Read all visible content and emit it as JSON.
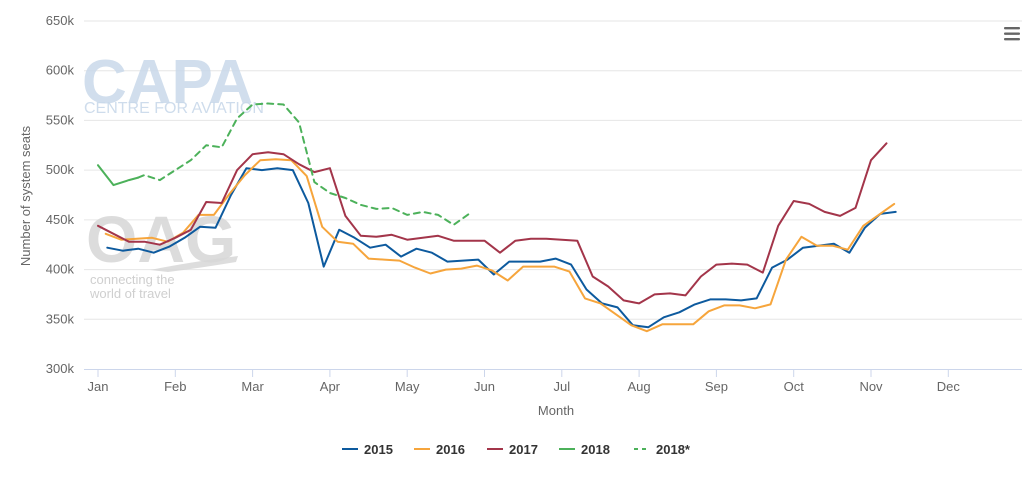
{
  "watermarks": {
    "capa_logo": "CAPA",
    "capa_sub": "CENTRE FOR AVIATION",
    "oag_logo": "OAG",
    "oag_tag_line1": "connecting the",
    "oag_tag_line2": "world of travel"
  },
  "menu_icon": "hamburger-icon",
  "chart_data": {
    "type": "line",
    "title": "",
    "xlabel": "Month",
    "ylabel": "Number of system seats",
    "ylim": [
      300000,
      650000
    ],
    "yticks": [
      {
        "value": 300000,
        "label": "300k"
      },
      {
        "value": 350000,
        "label": "350k"
      },
      {
        "value": 400000,
        "label": "400k"
      },
      {
        "value": 450000,
        "label": "450k"
      },
      {
        "value": 500000,
        "label": "500k"
      },
      {
        "value": 550000,
        "label": "550k"
      },
      {
        "value": 600000,
        "label": "600k"
      },
      {
        "value": 650000,
        "label": "650k"
      }
    ],
    "xlim": [
      0,
      12
    ],
    "xticks": [
      {
        "value": 0,
        "label": "Jan"
      },
      {
        "value": 1,
        "label": "Feb"
      },
      {
        "value": 2,
        "label": "Mar"
      },
      {
        "value": 3,
        "label": "Apr"
      },
      {
        "value": 4,
        "label": "May"
      },
      {
        "value": 5,
        "label": "Jun"
      },
      {
        "value": 6,
        "label": "Jul"
      },
      {
        "value": 7,
        "label": "Aug"
      },
      {
        "value": 8,
        "label": "Sep"
      },
      {
        "value": 9,
        "label": "Oct"
      },
      {
        "value": 10,
        "label": "Nov"
      },
      {
        "value": 11,
        "label": "Dec"
      }
    ],
    "grid": true,
    "legend_position": "bottom-center",
    "series": [
      {
        "name": "2015",
        "color": "#0d5a9e",
        "dashed": false,
        "points": [
          [
            0.12,
            422000
          ],
          [
            0.32,
            419000
          ],
          [
            0.52,
            421000
          ],
          [
            0.72,
            417000
          ],
          [
            0.92,
            423000
          ],
          [
            1.12,
            432000
          ],
          [
            1.32,
            443000
          ],
          [
            1.52,
            442000
          ],
          [
            1.72,
            475000
          ],
          [
            1.92,
            502000
          ],
          [
            2.12,
            500000
          ],
          [
            2.32,
            502000
          ],
          [
            2.52,
            500000
          ],
          [
            2.72,
            467000
          ],
          [
            2.92,
            403000
          ],
          [
            3.12,
            440000
          ],
          [
            3.32,
            432000
          ],
          [
            3.52,
            422000
          ],
          [
            3.72,
            425000
          ],
          [
            3.92,
            413000
          ],
          [
            4.12,
            421000
          ],
          [
            4.32,
            417000
          ],
          [
            4.52,
            408000
          ],
          [
            4.72,
            409000
          ],
          [
            4.92,
            410000
          ],
          [
            5.12,
            395000
          ],
          [
            5.32,
            408000
          ],
          [
            5.52,
            408000
          ],
          [
            5.72,
            408000
          ],
          [
            5.92,
            411000
          ],
          [
            6.12,
            405000
          ],
          [
            6.32,
            380000
          ],
          [
            6.52,
            366000
          ],
          [
            6.72,
            362000
          ],
          [
            6.92,
            344000
          ],
          [
            7.12,
            342000
          ],
          [
            7.32,
            352000
          ],
          [
            7.52,
            357000
          ],
          [
            7.72,
            365000
          ],
          [
            7.92,
            370000
          ],
          [
            8.12,
            370000
          ],
          [
            8.32,
            369000
          ],
          [
            8.52,
            371000
          ],
          [
            8.72,
            402000
          ],
          [
            8.92,
            410000
          ],
          [
            9.12,
            422000
          ],
          [
            9.32,
            424000
          ],
          [
            9.52,
            426000
          ],
          [
            9.72,
            417000
          ],
          [
            9.92,
            442000
          ],
          [
            10.12,
            456000
          ],
          [
            10.32,
            458000
          ]
        ]
      },
      {
        "name": "2016",
        "color": "#f6a53c",
        "dashed": false,
        "points": [
          [
            0.1,
            436000
          ],
          [
            0.3,
            430000
          ],
          [
            0.5,
            431000
          ],
          [
            0.7,
            432000
          ],
          [
            0.9,
            428000
          ],
          [
            1.1,
            437000
          ],
          [
            1.3,
            455000
          ],
          [
            1.5,
            455000
          ],
          [
            1.7,
            476000
          ],
          [
            1.9,
            495000
          ],
          [
            2.1,
            510000
          ],
          [
            2.3,
            511000
          ],
          [
            2.5,
            510000
          ],
          [
            2.7,
            494000
          ],
          [
            2.9,
            443000
          ],
          [
            3.1,
            428000
          ],
          [
            3.3,
            426000
          ],
          [
            3.5,
            411000
          ],
          [
            3.7,
            410000
          ],
          [
            3.9,
            409000
          ],
          [
            4.1,
            402000
          ],
          [
            4.3,
            396000
          ],
          [
            4.5,
            400000
          ],
          [
            4.7,
            401000
          ],
          [
            4.9,
            404000
          ],
          [
            5.1,
            399000
          ],
          [
            5.3,
            389000
          ],
          [
            5.5,
            403000
          ],
          [
            5.7,
            403000
          ],
          [
            5.9,
            403000
          ],
          [
            6.1,
            398000
          ],
          [
            6.3,
            371000
          ],
          [
            6.5,
            366000
          ],
          [
            6.7,
            355000
          ],
          [
            6.9,
            344000
          ],
          [
            7.1,
            338000
          ],
          [
            7.3,
            345000
          ],
          [
            7.5,
            345000
          ],
          [
            7.7,
            345000
          ],
          [
            7.9,
            358000
          ],
          [
            8.1,
            364000
          ],
          [
            8.3,
            364000
          ],
          [
            8.5,
            361000
          ],
          [
            8.7,
            365000
          ],
          [
            8.9,
            410000
          ],
          [
            9.1,
            433000
          ],
          [
            9.3,
            424000
          ],
          [
            9.5,
            424000
          ],
          [
            9.7,
            420000
          ],
          [
            9.9,
            444000
          ],
          [
            10.1,
            455000
          ],
          [
            10.3,
            466000
          ]
        ]
      },
      {
        "name": "2017",
        "color": "#a3354a",
        "dashed": false,
        "points": [
          [
            0.0,
            444000
          ],
          [
            0.2,
            436000
          ],
          [
            0.4,
            428000
          ],
          [
            0.6,
            428000
          ],
          [
            0.8,
            425000
          ],
          [
            1.0,
            432000
          ],
          [
            1.2,
            440000
          ],
          [
            1.4,
            468000
          ],
          [
            1.6,
            467000
          ],
          [
            1.8,
            500000
          ],
          [
            2.0,
            516000
          ],
          [
            2.2,
            518000
          ],
          [
            2.4,
            516000
          ],
          [
            2.6,
            506000
          ],
          [
            2.8,
            498000
          ],
          [
            3.0,
            502000
          ],
          [
            3.2,
            454000
          ],
          [
            3.4,
            434000
          ],
          [
            3.6,
            433000
          ],
          [
            3.8,
            435000
          ],
          [
            4.0,
            430000
          ],
          [
            4.2,
            432000
          ],
          [
            4.4,
            434000
          ],
          [
            4.6,
            429000
          ],
          [
            4.8,
            429000
          ],
          [
            5.0,
            429000
          ],
          [
            5.2,
            417000
          ],
          [
            5.4,
            429000
          ],
          [
            5.6,
            431000
          ],
          [
            5.8,
            431000
          ],
          [
            6.0,
            430000
          ],
          [
            6.2,
            429000
          ],
          [
            6.4,
            393000
          ],
          [
            6.6,
            383000
          ],
          [
            6.8,
            369000
          ],
          [
            7.0,
            366000
          ],
          [
            7.2,
            375000
          ],
          [
            7.4,
            376000
          ],
          [
            7.6,
            374000
          ],
          [
            7.8,
            393000
          ],
          [
            8.0,
            405000
          ],
          [
            8.2,
            406000
          ],
          [
            8.4,
            405000
          ],
          [
            8.6,
            397000
          ],
          [
            8.8,
            444000
          ],
          [
            9.0,
            469000
          ],
          [
            9.2,
            466000
          ],
          [
            9.4,
            458000
          ],
          [
            9.6,
            454000
          ],
          [
            9.8,
            462000
          ],
          [
            10.0,
            510000
          ],
          [
            10.2,
            527000
          ]
        ]
      },
      {
        "name": "2018",
        "color": "#4cb15a",
        "dashed": false,
        "points": [
          [
            0.0,
            505000
          ],
          [
            0.2,
            485000
          ],
          [
            0.4,
            490000
          ],
          [
            0.52,
            492500
          ]
        ]
      },
      {
        "name": "2018*",
        "color": "#4cb15a",
        "dashed": true,
        "points": [
          [
            0.52,
            492500
          ],
          [
            0.6,
            495000
          ],
          [
            0.8,
            490000
          ],
          [
            1.0,
            500000
          ],
          [
            1.2,
            510000
          ],
          [
            1.4,
            525000
          ],
          [
            1.6,
            523000
          ],
          [
            1.8,
            552000
          ],
          [
            2.0,
            566000
          ],
          [
            2.2,
            567000
          ],
          [
            2.4,
            566000
          ],
          [
            2.6,
            548000
          ],
          [
            2.8,
            488000
          ],
          [
            3.0,
            477000
          ],
          [
            3.2,
            472000
          ],
          [
            3.4,
            465000
          ],
          [
            3.6,
            461000
          ],
          [
            3.8,
            462000
          ],
          [
            4.0,
            455000
          ],
          [
            4.2,
            458000
          ],
          [
            4.4,
            455000
          ],
          [
            4.6,
            445000
          ],
          [
            4.8,
            456000
          ]
        ]
      }
    ]
  }
}
